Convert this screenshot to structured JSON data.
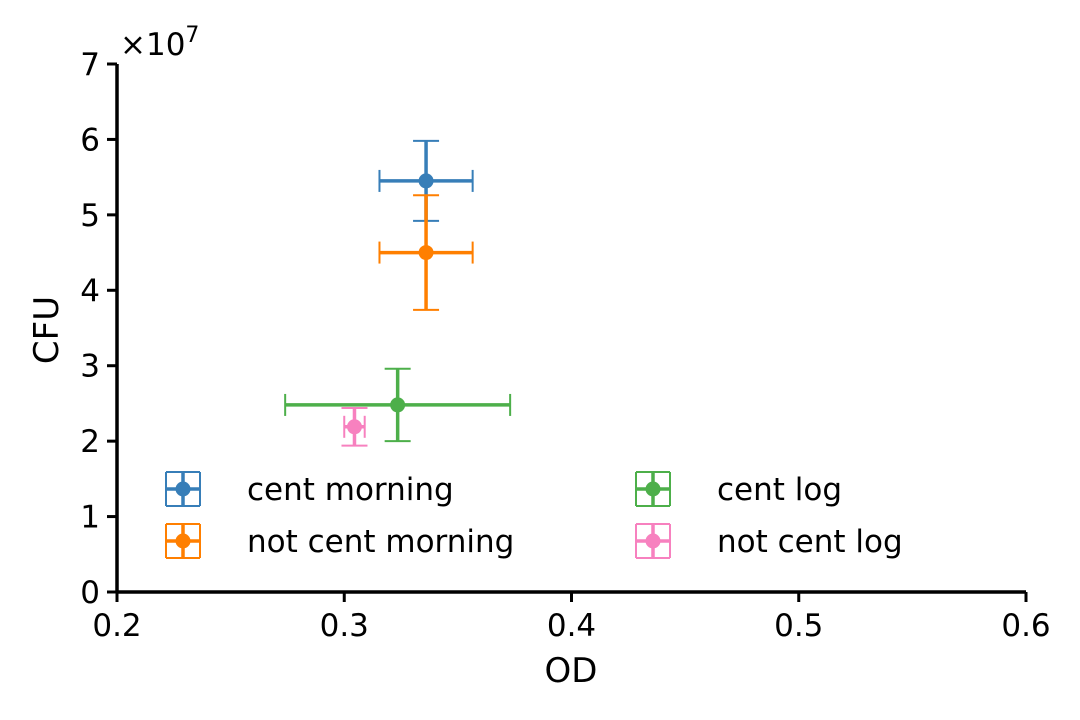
{
  "chart_data": {
    "type": "scatter",
    "title": "",
    "xlabel": "OD",
    "ylabel": "CFU",
    "y_multiplier_label": "×10",
    "y_multiplier_exponent": "7",
    "xlim": [
      0.2,
      0.6
    ],
    "ylim": [
      0,
      7
    ],
    "xticks": [
      "0.2",
      "0.3",
      "0.4",
      "0.5",
      "0.6"
    ],
    "yticks": [
      "0",
      "1",
      "2",
      "3",
      "4",
      "5",
      "6",
      "7"
    ],
    "grid": false,
    "legend_placement": "lower center, two columns",
    "series": [
      {
        "name": "cent morning",
        "color": "#377eb8",
        "x": 0.336,
        "y": 5.45,
        "xerr": 0.0205,
        "yerr": 0.53
      },
      {
        "name": "not cent morning",
        "color": "#ff7f00",
        "x": 0.336,
        "y": 4.5,
        "xerr": 0.0205,
        "yerr": 0.76
      },
      {
        "name": "cent log",
        "color": "#4daf4a",
        "x": 0.3235,
        "y": 2.48,
        "xerr": 0.0495,
        "yerr": 0.48
      },
      {
        "name": "not cent log",
        "color": "#f781bf",
        "x": 0.3045,
        "y": 2.19,
        "xerr": 0.0045,
        "yerr": 0.25
      }
    ]
  }
}
